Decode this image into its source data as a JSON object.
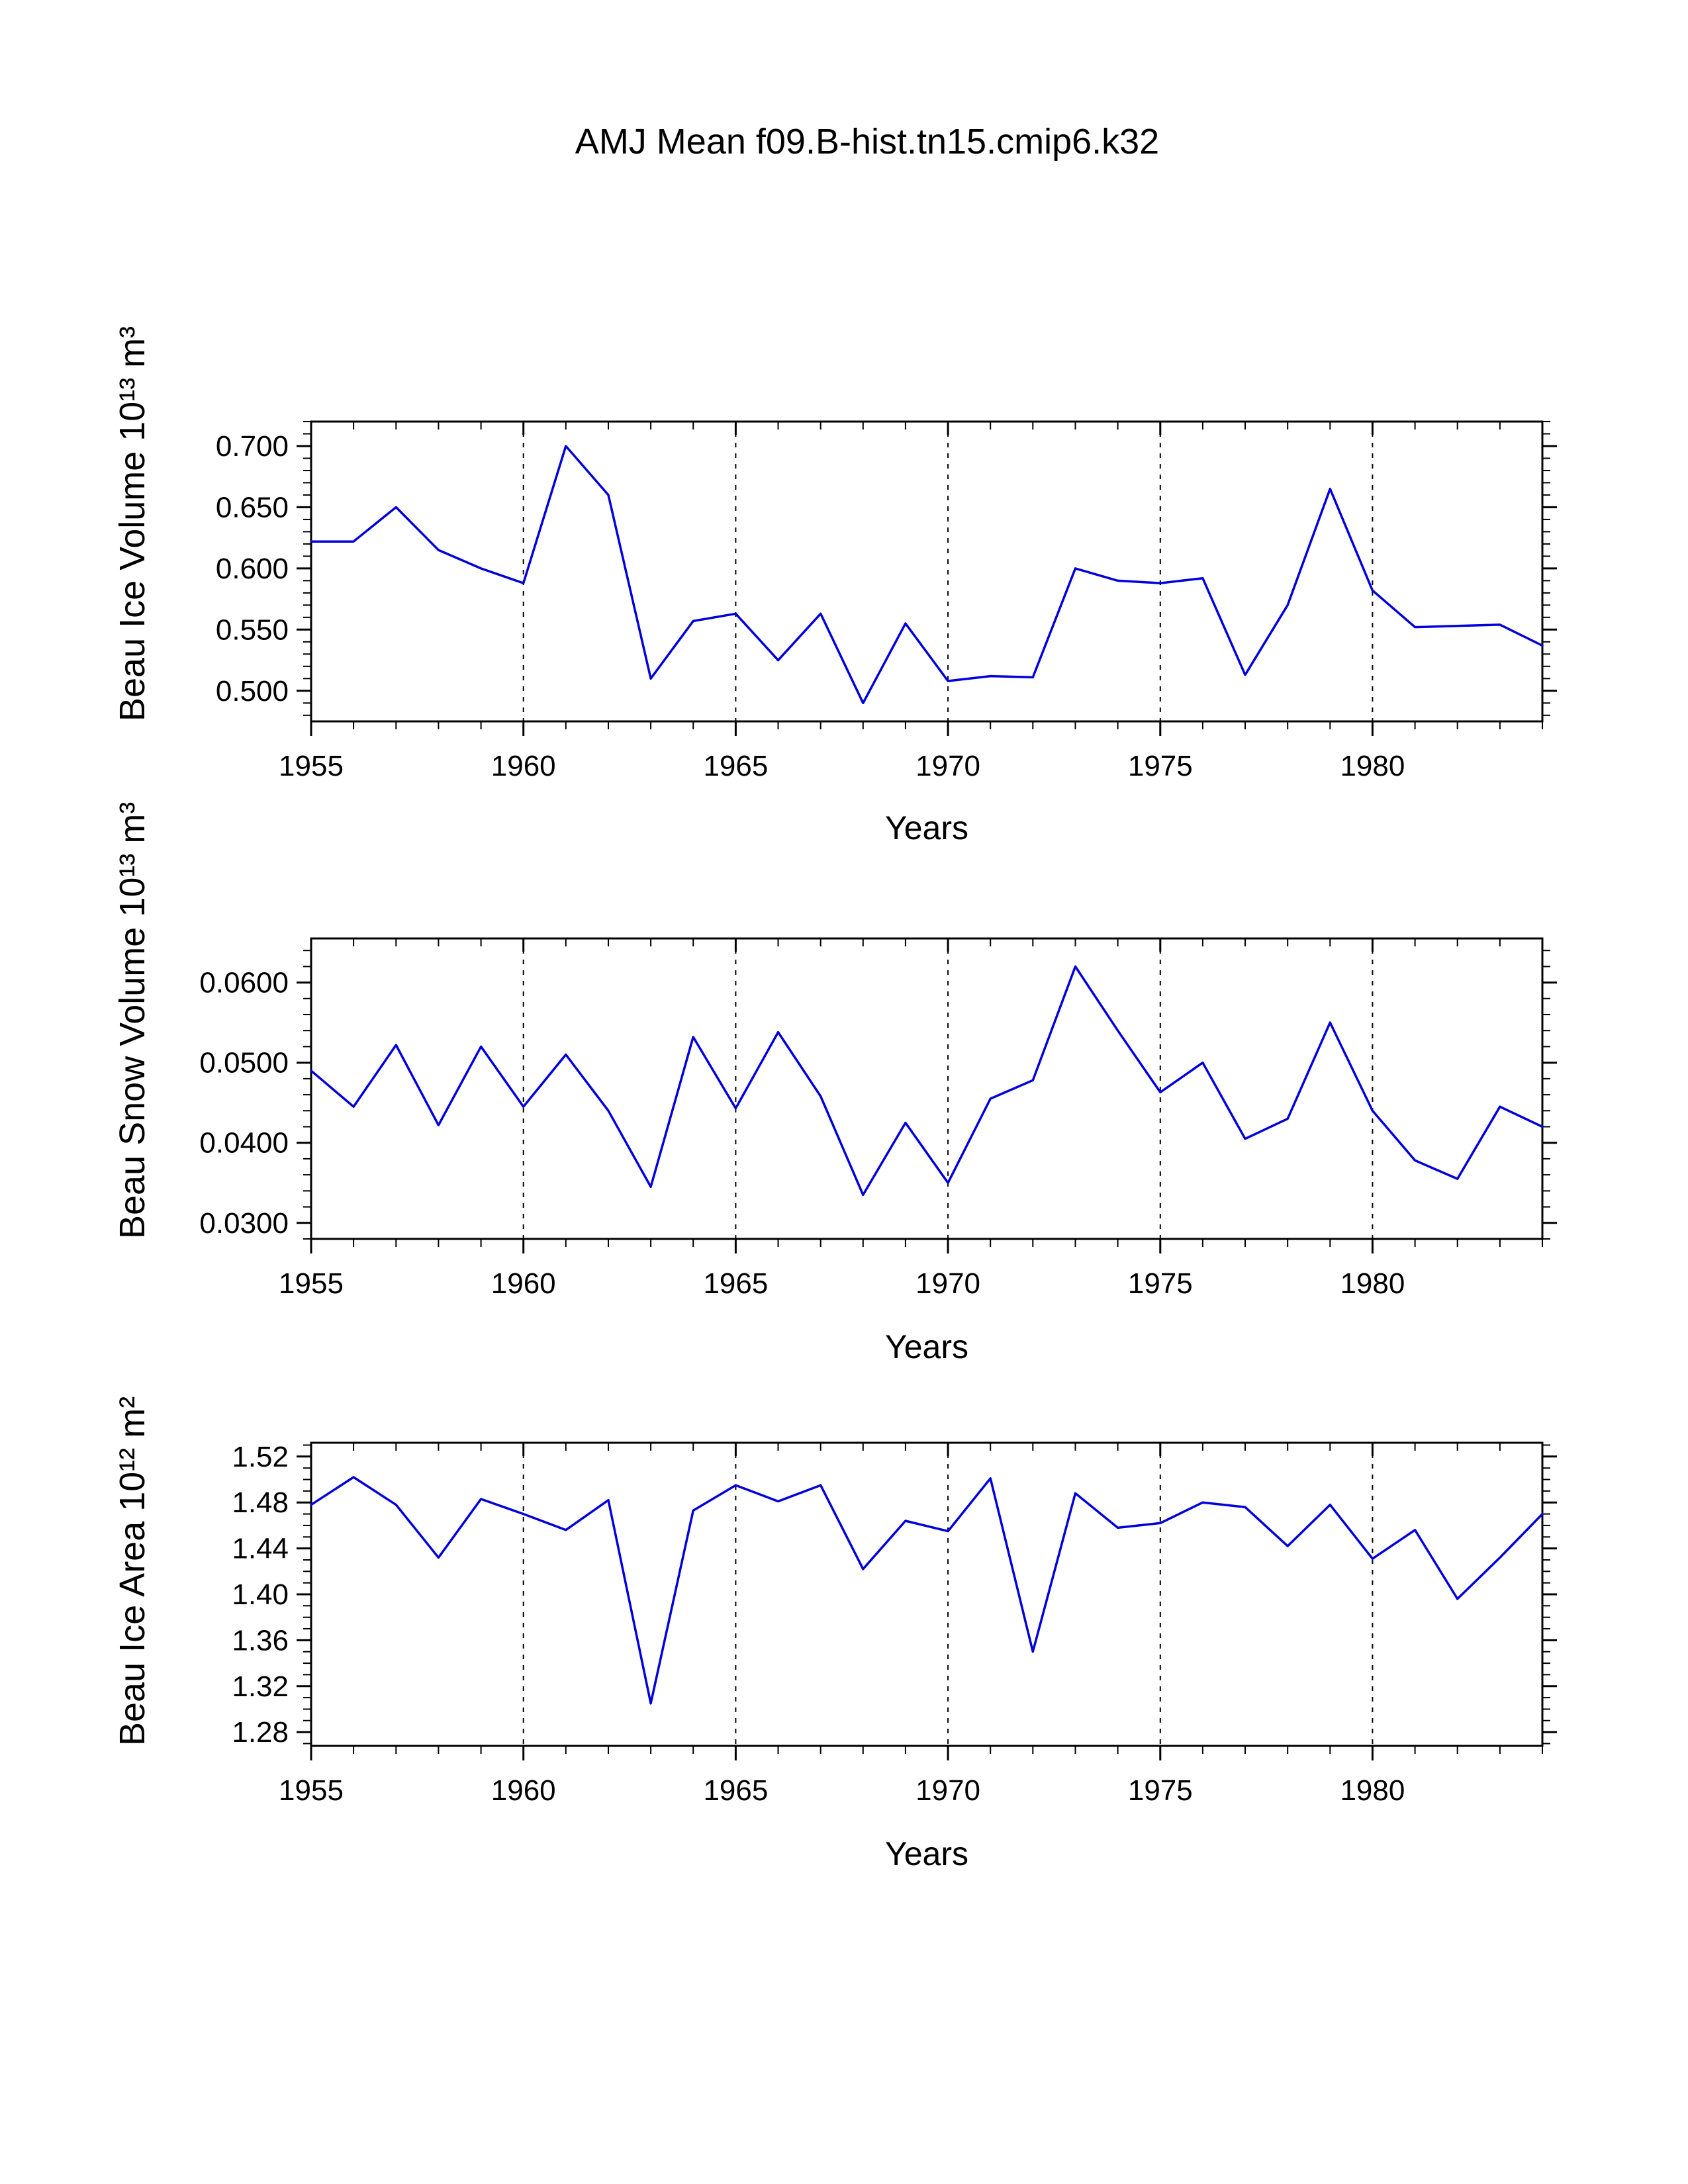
{
  "title": "AMJ Mean f09.B-hist.tn15.cmip6.k32",
  "line_color": "#0000dd",
  "chart_data": [
    {
      "type": "line",
      "ylabel": "Beau Ice Volume 10¹³ m³",
      "xlabel": "Years",
      "x": [
        1955,
        1956,
        1957,
        1958,
        1959,
        1960,
        1961,
        1962,
        1963,
        1964,
        1965,
        1966,
        1967,
        1968,
        1969,
        1970,
        1971,
        1972,
        1973,
        1974,
        1975,
        1976,
        1977,
        1978,
        1979,
        1980,
        1981,
        1982,
        1983,
        1984
      ],
      "values": [
        0.622,
        0.622,
        0.65,
        0.615,
        0.6,
        0.588,
        0.7,
        0.66,
        0.51,
        0.557,
        0.563,
        0.525,
        0.563,
        0.49,
        0.555,
        0.508,
        0.512,
        0.511,
        0.6,
        0.59,
        0.588,
        0.592,
        0.513,
        0.57,
        0.665,
        0.582,
        0.552,
        0.553,
        0.554,
        0.537
      ],
      "xlim": [
        1955,
        1984
      ],
      "ylim": [
        0.475,
        0.72
      ],
      "yticks": [
        0.5,
        0.55,
        0.6,
        0.65,
        0.7
      ],
      "ytick_labels": [
        "0.500",
        "0.550",
        "0.600",
        "0.650",
        "0.700"
      ],
      "yminor_step": 0.01,
      "xticks": [
        1955,
        1960,
        1965,
        1970,
        1975,
        1980
      ],
      "xtick_labels": [
        "1955",
        "1960",
        "1965",
        "1970",
        "1975",
        "1980"
      ],
      "xminor_step": 1,
      "grid_years": [
        1960,
        1965,
        1970,
        1975,
        1980
      ],
      "grid_on": true,
      "legend": "none"
    },
    {
      "type": "line",
      "ylabel": "Beau Snow Volume 10¹³ m³",
      "xlabel": "Years",
      "x": [
        1955,
        1956,
        1957,
        1958,
        1959,
        1960,
        1961,
        1962,
        1963,
        1964,
        1965,
        1966,
        1967,
        1968,
        1969,
        1970,
        1971,
        1972,
        1973,
        1974,
        1975,
        1976,
        1977,
        1978,
        1979,
        1980,
        1981,
        1982,
        1983,
        1984
      ],
      "values": [
        0.049,
        0.0445,
        0.0522,
        0.0422,
        0.052,
        0.0445,
        0.051,
        0.044,
        0.0345,
        0.0532,
        0.0443,
        0.0538,
        0.0458,
        0.0335,
        0.0425,
        0.035,
        0.0455,
        0.0478,
        0.062,
        0.054,
        0.0463,
        0.05,
        0.0405,
        0.043,
        0.055,
        0.044,
        0.0378,
        0.0355,
        0.0445,
        0.042
      ],
      "xlim": [
        1955,
        1984
      ],
      "ylim": [
        0.028,
        0.0655
      ],
      "yticks": [
        0.03,
        0.04,
        0.05,
        0.06
      ],
      "ytick_labels": [
        "0.0300",
        "0.0400",
        "0.0500",
        "0.0600"
      ],
      "yminor_step": 0.002,
      "xticks": [
        1955,
        1960,
        1965,
        1970,
        1975,
        1980
      ],
      "xtick_labels": [
        "1955",
        "1960",
        "1965",
        "1970",
        "1975",
        "1980"
      ],
      "xminor_step": 1,
      "grid_years": [
        1960,
        1965,
        1970,
        1975,
        1980
      ],
      "grid_on": true,
      "legend": "none"
    },
    {
      "type": "line",
      "ylabel": "Beau Ice Area 10¹² m²",
      "xlabel": "Years",
      "x": [
        1955,
        1956,
        1957,
        1958,
        1959,
        1960,
        1961,
        1962,
        1963,
        1964,
        1965,
        1966,
        1967,
        1968,
        1969,
        1970,
        1971,
        1972,
        1973,
        1974,
        1975,
        1976,
        1977,
        1978,
        1979,
        1980,
        1981,
        1982,
        1983,
        1984
      ],
      "values": [
        1.478,
        1.502,
        1.478,
        1.432,
        1.483,
        1.47,
        1.456,
        1.482,
        1.305,
        1.473,
        1.495,
        1.481,
        1.495,
        1.422,
        1.464,
        1.455,
        1.501,
        1.35,
        1.488,
        1.458,
        1.462,
        1.48,
        1.476,
        1.442,
        1.478,
        1.431,
        1.456,
        1.396,
        1.432,
        1.47
      ],
      "xlim": [
        1955,
        1984
      ],
      "ylim": [
        1.268,
        1.532
      ],
      "yticks": [
        1.28,
        1.32,
        1.36,
        1.4,
        1.44,
        1.48,
        1.52
      ],
      "ytick_labels": [
        "1.28",
        "1.32",
        "1.36",
        "1.40",
        "1.44",
        "1.48",
        "1.52"
      ],
      "yminor_step": 0.01,
      "xticks": [
        1955,
        1960,
        1965,
        1970,
        1975,
        1980
      ],
      "xtick_labels": [
        "1955",
        "1960",
        "1965",
        "1970",
        "1975",
        "1980"
      ],
      "xminor_step": 1,
      "grid_years": [
        1960,
        1965,
        1970,
        1975,
        1980
      ],
      "grid_on": true,
      "legend": "none"
    }
  ]
}
